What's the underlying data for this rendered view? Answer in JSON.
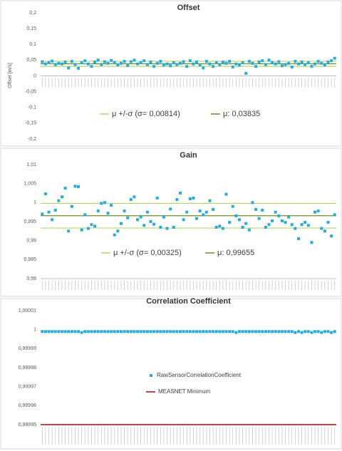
{
  "chart_data": [
    {
      "type": "scatter",
      "title": "Offset",
      "y_label": "Offset [m/s]",
      "ylim": [
        -0.2,
        0.2
      ],
      "yticks": [
        {
          "value": -0.2,
          "label": "-0,2"
        },
        {
          "value": -0.15,
          "label": "-0,15"
        },
        {
          "value": -0.1,
          "label": "-0,1"
        },
        {
          "value": -0.05,
          "label": "-0,05"
        },
        0,
        {
          "value": 0.05,
          "label": "0,05"
        },
        {
          "value": 0.1,
          "label": "0,1"
        },
        {
          "value": 0.15,
          "label": "0,15"
        },
        {
          "value": 0.2,
          "label": "0,2"
        }
      ],
      "grid": false,
      "color": "#29abd9",
      "mean": 0.03835,
      "std": 0.00814,
      "band_label": "μ +/-σ (σ= 0,00814)",
      "band_color": "#b5d86e",
      "mean_label": "μ: 0,03835",
      "mean_color": "#6f8a2a",
      "values": [
        0.045,
        0.038,
        0.042,
        0.047,
        0.036,
        0.04,
        0.038,
        0.044,
        0.025,
        0.046,
        0.036,
        0.024,
        0.042,
        0.048,
        0.038,
        0.03,
        0.044,
        0.05,
        0.036,
        0.045,
        0.04,
        0.049,
        0.042,
        0.035,
        0.04,
        0.046,
        0.033,
        0.045,
        0.05,
        0.038,
        0.042,
        0.048,
        0.036,
        0.044,
        0.03,
        0.04,
        0.046,
        0.034,
        0.038,
        0.032,
        0.042,
        0.036,
        0.04,
        0.045,
        0.03,
        0.048,
        0.038,
        0.044,
        0.035,
        0.025,
        0.046,
        0.038,
        0.03,
        0.042,
        0.036,
        0.044,
        0.04,
        0.046,
        0.028,
        0.038,
        0.034,
        0.042,
        0.008,
        0.046,
        0.04,
        0.03,
        0.044,
        0.048,
        0.036,
        0.05,
        0.042,
        0.038,
        0.045,
        0.032,
        0.036,
        0.04,
        0.028,
        0.046,
        0.038,
        0.044,
        0.036,
        0.042,
        0.03,
        0.038,
        0.046,
        0.04,
        0.034,
        0.044,
        0.048,
        0.056
      ]
    },
    {
      "type": "scatter",
      "title": "Gain",
      "ylim": [
        0.98,
        1.01
      ],
      "yticks": [
        {
          "value": 0.98,
          "label": "0,98"
        },
        {
          "value": 0.985,
          "label": "0,985"
        },
        {
          "value": 0.99,
          "label": "0,99"
        },
        {
          "value": 0.995,
          "label": "0,995"
        },
        1,
        {
          "value": 1.005,
          "label": "1,005"
        },
        {
          "value": 1.01,
          "label": "1,01"
        }
      ],
      "grid": false,
      "color": "#29abd9",
      "mean": 0.99655,
      "std": 0.00325,
      "band_label": "μ +/-σ (σ= 0,00325)",
      "band_color": "#b5d86e",
      "mean_label": "μ: 0,99655",
      "mean_color": "#6f8a2a",
      "values": [
        0.997,
        1.0023,
        0.9975,
        0.9955,
        0.998,
        1.0005,
        1.0015,
        1.0038,
        0.9925,
        0.999,
        1.0043,
        1.0042,
        0.9928,
        0.9968,
        0.9932,
        0.9942,
        0.9938,
        0.9978,
        0.9998,
        1.0,
        0.9972,
        0.9993,
        0.9915,
        0.9925,
        0.9945,
        0.9978,
        0.996,
        1.0008,
        1.0015,
        0.9955,
        0.9962,
        0.994,
        0.9975,
        0.995,
        0.9943,
        1.0012,
        0.9935,
        0.9962,
        0.9932,
        0.9983,
        0.9935,
        1.0008,
        1.0025,
        0.9955,
        0.9975,
        1.001,
        1.0012,
        0.9958,
        0.9978,
        0.9968,
        0.9975,
        1.0005,
        0.9982,
        0.9935,
        0.9938,
        0.9932,
        1.0022,
        0.9948,
        0.999,
        0.9965,
        0.9955,
        0.9935,
        0.9945,
        0.9928,
        1.0,
        0.9982,
        0.9958,
        0.998,
        0.9935,
        0.9942,
        0.9952,
        0.9975,
        0.9965,
        0.9952,
        0.9948,
        0.9962,
        0.9942,
        0.9932,
        0.9905,
        0.9942,
        0.9948,
        0.994,
        0.9895,
        0.9975,
        0.9978,
        0.9932,
        0.9925,
        0.9948,
        0.9912,
        0.9968
      ]
    },
    {
      "type": "scatter",
      "title": "Correlation Coefficient",
      "ylim": [
        0.99995,
        1.00001
      ],
      "yticks": [
        {
          "value": 0.99995,
          "label": "0,99995"
        },
        {
          "value": 0.99996,
          "label": "0,99996"
        },
        {
          "value": 0.99997,
          "label": "0,99997"
        },
        {
          "value": 0.99998,
          "label": "0,99998"
        },
        {
          "value": 0.99999,
          "label": "0,99999"
        },
        1,
        {
          "value": 1.00001,
          "label": "1,00001"
        }
      ],
      "grid": false,
      "color": "#29abd9",
      "series_name": "RawSensorCorrelationCoefficient",
      "threshold": 0.99995,
      "threshold_label": "MEASNET Minimum",
      "threshold_color": "#c00000",
      "values": [
        0.999999,
        0.999999,
        0.999999,
        0.999999,
        0.999999,
        0.999999,
        0.999999,
        0.999999,
        0.999999,
        0.999999,
        0.999999,
        0.999999,
        0.9999985,
        0.999999,
        0.999999,
        0.999999,
        0.999999,
        0.999999,
        0.999999,
        0.999999,
        0.999999,
        0.999999,
        0.999999,
        0.999999,
        0.999999,
        0.999999,
        0.999999,
        0.999999,
        0.999999,
        0.999999,
        0.999999,
        0.999999,
        0.999999,
        0.999999,
        0.999999,
        0.999999,
        0.999999,
        0.999999,
        0.999999,
        0.999999,
        0.999999,
        0.999999,
        0.999999,
        0.999999,
        0.999999,
        0.999999,
        0.999999,
        0.999999,
        0.999999,
        0.999999,
        0.999999,
        0.999999,
        0.999999,
        0.999999,
        0.999999,
        0.999999,
        0.999999,
        0.999999,
        0.999999,
        0.9999985,
        0.999999,
        0.999999,
        0.999999,
        0.999999,
        0.999999,
        0.999999,
        0.999999,
        0.999999,
        0.999999,
        0.999999,
        0.999999,
        0.999999,
        0.999999,
        0.999999,
        0.999999,
        0.999999,
        0.999999,
        0.9999985,
        0.999999,
        0.9999985,
        0.999999,
        0.999999,
        0.9999985,
        0.999999,
        0.999999,
        0.9999985,
        0.999999,
        0.999999,
        0.9999985,
        0.999999
      ]
    }
  ]
}
